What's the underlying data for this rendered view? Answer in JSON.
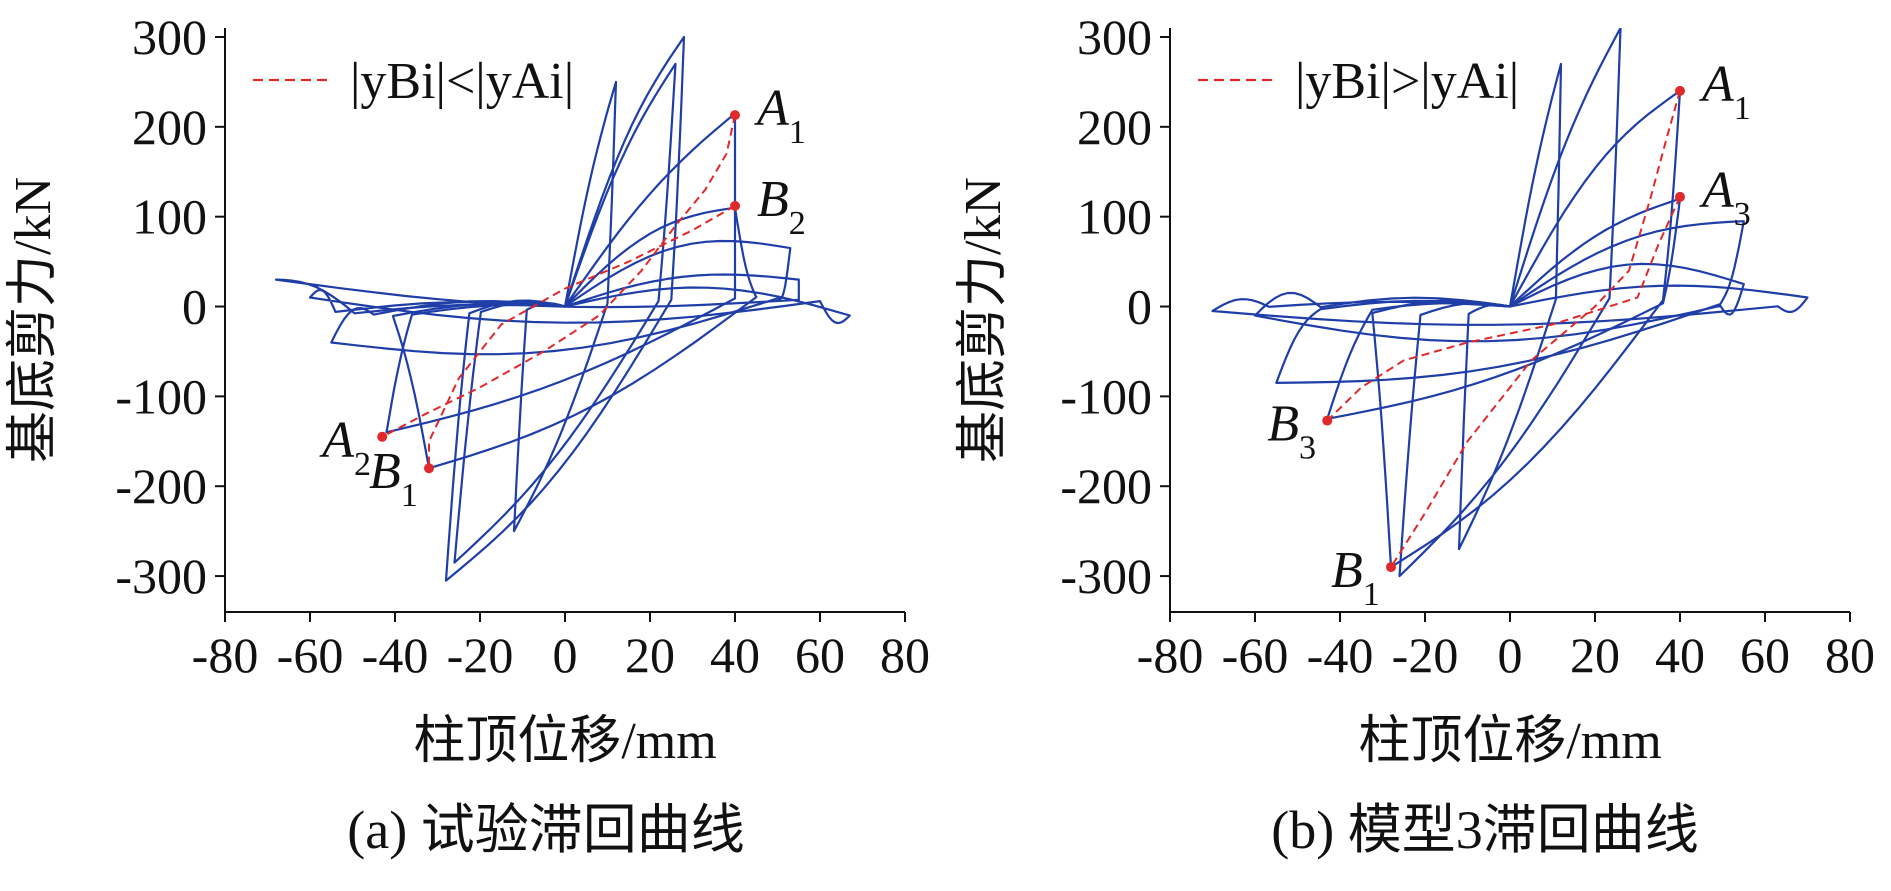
{
  "figure": {
    "captions": [
      "(a) 试验滞回曲线",
      "(b) 模型3滞回曲线"
    ]
  },
  "colors": {
    "hysteresis": "#1f3ea8",
    "skeleton": "#e0292b",
    "axis": "#111111"
  },
  "chart_data": [
    {
      "type": "line",
      "panel": "a",
      "caption": "(a) 试验滞回曲线",
      "xlabel": "柱顶位移/mm",
      "ylabel": "基底剪力/kN",
      "xlim": [
        -80,
        80
      ],
      "ylim": [
        -340,
        310
      ],
      "xticks": [
        -80,
        -60,
        -40,
        -20,
        0,
        20,
        40,
        60,
        80
      ],
      "yticks": [
        -300,
        -200,
        -100,
        0,
        100,
        200,
        300
      ],
      "legend": {
        "text": "|yBi|<|yAi|",
        "position": "top-left",
        "line_style": "dashed"
      },
      "series": [
        {
          "style": "hysteresis",
          "loops": [
            {
              "peak_pos": [
                12,
                250
              ],
              "peak_neg": [
                -12,
                -250
              ],
              "return": [
                10,
                12
              ]
            },
            {
              "peak_pos": [
                26,
                270
              ],
              "peak_neg": [
                -26,
                -285
              ],
              "return": [
                22,
                20
              ]
            },
            {
              "peak_pos": [
                28,
                300
              ],
              "peak_neg": [
                -28,
                -305
              ],
              "return": [
                25,
                25
              ]
            },
            {
              "peak_pos": [
                40,
                215
              ],
              "peak_neg": [
                -42,
                -140
              ],
              "return": [
                40,
                30
              ]
            },
            {
              "peak_pos": [
                40,
                110
              ],
              "peak_neg": [
                -32,
                -180
              ],
              "return": [
                45,
                35
              ]
            },
            {
              "peak_pos": [
                53,
                65
              ],
              "peak_neg": [
                -55,
                -40
              ],
              "return": [
                50,
                30
              ]
            },
            {
              "peak_pos": [
                55,
                30
              ],
              "peak_neg": [
                -68,
                30
              ],
              "return": [
                55,
                25
              ]
            },
            {
              "peak_pos": [
                67,
                -10
              ],
              "peak_neg": [
                -60,
                10
              ],
              "return": [
                60,
                20
              ]
            }
          ]
        }
      ],
      "skeleton_points": [
        {
          "label": "A",
          "sub": "1",
          "x": 40,
          "y": 213
        },
        {
          "label": "B",
          "sub": "2",
          "x": 40,
          "y": 112
        },
        {
          "label": "A",
          "sub": "2",
          "x": -43,
          "y": -145
        },
        {
          "label": "B",
          "sub": "1",
          "x": -32,
          "y": -180
        }
      ],
      "skeleton_lines": [
        [
          [
            40,
            213
          ],
          [
            38,
            170
          ],
          [
            33,
            130
          ],
          [
            26,
            90
          ],
          [
            18,
            40
          ],
          [
            8,
            -10
          ],
          [
            -5,
            -50
          ],
          [
            -20,
            -90
          ],
          [
            -33,
            -120
          ],
          [
            -43,
            -145
          ]
        ],
        [
          [
            40,
            112
          ],
          [
            30,
            85
          ],
          [
            15,
            50
          ],
          [
            0,
            20
          ],
          [
            -15,
            -20
          ],
          [
            -25,
            -80
          ],
          [
            -32,
            -150
          ],
          [
            -32,
            -180
          ]
        ]
      ]
    },
    {
      "type": "line",
      "panel": "b",
      "caption": "(b) 模型3滞回曲线",
      "xlabel": "柱顶位移/mm",
      "ylabel": "基底剪力/kN",
      "xlim": [
        -80,
        80
      ],
      "ylim": [
        -340,
        310
      ],
      "xticks": [
        -80,
        -60,
        -40,
        -20,
        0,
        20,
        40,
        60,
        80
      ],
      "yticks": [
        -300,
        -200,
        -100,
        0,
        100,
        200,
        300
      ],
      "legend": {
        "text": "|yBi|>|yAi|",
        "position": "top-left",
        "line_style": "dashed"
      },
      "series": [
        {
          "style": "hysteresis",
          "loops": [
            {
              "peak_pos": [
                12,
                270
              ],
              "peak_neg": [
                -12,
                -270
              ]
            },
            {
              "peak_pos": [
                26,
                310
              ],
              "peak_neg": [
                -26,
                -300
              ]
            },
            {
              "peak_pos": [
                40,
                240
              ],
              "peak_neg": [
                -28,
                -290
              ]
            },
            {
              "peak_pos": [
                40,
                120
              ],
              "peak_neg": [
                -43,
                -125
              ]
            },
            {
              "peak_pos": [
                55,
                95
              ],
              "peak_neg": [
                -55,
                -85
              ]
            },
            {
              "peak_pos": [
                55,
                25
              ],
              "peak_neg": [
                -60,
                -10
              ]
            },
            {
              "peak_pos": [
                70,
                10
              ],
              "peak_neg": [
                -70,
                -5
              ]
            }
          ]
        }
      ],
      "skeleton_points": [
        {
          "label": "A",
          "sub": "1",
          "x": 40,
          "y": 240
        },
        {
          "label": "A",
          "sub": "3",
          "x": 40,
          "y": 122
        },
        {
          "label": "B",
          "sub": "3",
          "x": -43,
          "y": -127
        },
        {
          "label": "B",
          "sub": "1",
          "x": -28,
          "y": -290
        }
      ],
      "skeleton_lines": [
        [
          [
            40,
            240
          ],
          [
            37,
            190
          ],
          [
            33,
            120
          ],
          [
            28,
            40
          ],
          [
            20,
            0
          ],
          [
            5,
            -60
          ],
          [
            -10,
            -150
          ],
          [
            -20,
            -230
          ],
          [
            -28,
            -290
          ]
        ],
        [
          [
            40,
            122
          ],
          [
            35,
            70
          ],
          [
            30,
            10
          ],
          [
            10,
            -20
          ],
          [
            -10,
            -40
          ],
          [
            -25,
            -60
          ],
          [
            -35,
            -90
          ],
          [
            -43,
            -127
          ]
        ]
      ]
    }
  ]
}
